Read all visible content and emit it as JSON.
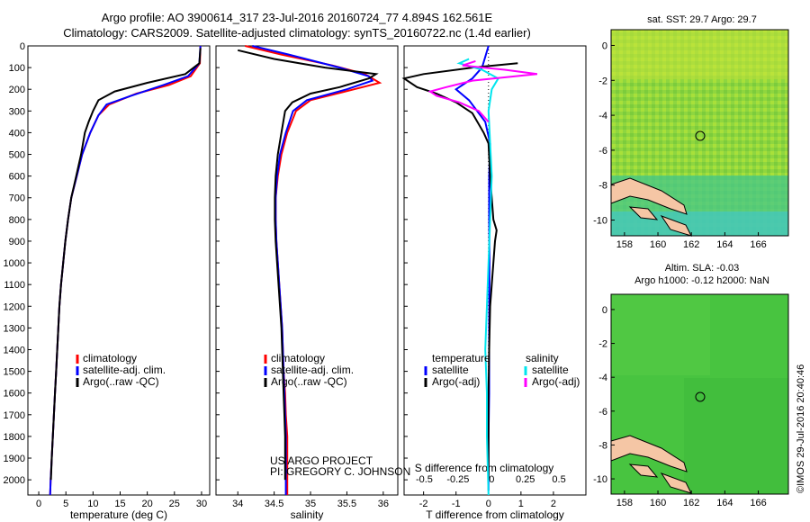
{
  "header": {
    "title_line1": "Argo profile: AO 3900614_317 23-Jul-2016 20160724_77 4.894S 162.561E",
    "title_line2": "Climatology: CARS2009. Satellite-adjusted climatology: synTS_20160722.nc (1.4d earlier)"
  },
  "colors": {
    "climatology": "#ff0000",
    "satellite": "#0000ff",
    "argo": "#000000",
    "sal_satellite": "#00e5ee",
    "sal_argo": "#ff00ff",
    "land": "#f5c6a5"
  },
  "maps": {
    "sst": {
      "title": "sat. SST: 29.7 Argo: 29.7",
      "xticks": [
        "158",
        "160",
        "162",
        "164",
        "166"
      ],
      "yticks": [
        "0",
        "-2",
        "-4",
        "-6",
        "-8",
        "-10"
      ],
      "float_lon": 162.561,
      "float_lat": -4.894
    },
    "sla": {
      "title_line1": "Altim. SLA: -0.03",
      "title_line2": "Argo h1000: -0.12 h2000: NaN",
      "xticks": [
        "158",
        "160",
        "162",
        "164",
        "166"
      ],
      "yticks": [
        "0",
        "-2",
        "-4",
        "-6",
        "-8",
        "-10"
      ],
      "float_lon": 162.561,
      "float_lat": -4.894
    }
  },
  "footer": {
    "project": "US ARGO PROJECT",
    "pi": "PI: GREGORY C. JOHNSON",
    "timestamp": "©IMOS 29-Jul-2016 20:40:46"
  },
  "chart_data": [
    {
      "type": "line",
      "name": "temperature",
      "xlabel": "temperature (deg C)",
      "ylabel": "",
      "xlim": [
        -2,
        31.5
      ],
      "ylim": [
        2070,
        0
      ],
      "xticks": [
        0,
        5,
        10,
        15,
        20,
        25,
        30
      ],
      "yticks": [
        0,
        100,
        200,
        300,
        400,
        500,
        600,
        700,
        800,
        900,
        1000,
        1100,
        1200,
        1300,
        1400,
        1500,
        1600,
        1700,
        1800,
        1900,
        2000
      ],
      "legend": [
        "climatology",
        "satellite-adj. clim.",
        "Argo(..raw -QC)"
      ],
      "legend_position": "bottom-center",
      "series": [
        {
          "name": "climatology",
          "color": "#ff0000",
          "points": [
            [
              29.8,
              0
            ],
            [
              29.7,
              80
            ],
            [
              28,
              140
            ],
            [
              24,
              180
            ],
            [
              18,
              220
            ],
            [
              13,
              270
            ],
            [
              11,
              320
            ],
            [
              9.5,
              400
            ],
            [
              8,
              500
            ],
            [
              7,
              600
            ],
            [
              6,
              700
            ],
            [
              5.4,
              800
            ],
            [
              4.9,
              900
            ],
            [
              4.5,
              1000
            ],
            [
              4.1,
              1100
            ],
            [
              3.8,
              1200
            ],
            [
              3.6,
              1300
            ],
            [
              3.4,
              1400
            ],
            [
              3.2,
              1500
            ],
            [
              3.0,
              1600
            ],
            [
              2.8,
              1700
            ],
            [
              2.6,
              1800
            ],
            [
              2.4,
              1900
            ],
            [
              2.2,
              2000
            ],
            [
              2.1,
              2070
            ]
          ]
        },
        {
          "name": "satellite-adj. clim.",
          "color": "#0000ff",
          "points": [
            [
              29.8,
              0
            ],
            [
              29.6,
              80
            ],
            [
              27.5,
              140
            ],
            [
              23,
              180
            ],
            [
              17,
              230
            ],
            [
              12.5,
              270
            ],
            [
              11,
              320
            ],
            [
              9.5,
              400
            ],
            [
              8,
              500
            ],
            [
              7,
              600
            ],
            [
              6,
              700
            ],
            [
              5.4,
              800
            ],
            [
              4.9,
              900
            ],
            [
              4.5,
              1000
            ],
            [
              4.1,
              1100
            ],
            [
              3.8,
              1200
            ],
            [
              3.6,
              1300
            ],
            [
              3.4,
              1400
            ],
            [
              3.2,
              1500
            ],
            [
              3.0,
              1600
            ],
            [
              2.8,
              1700
            ],
            [
              2.6,
              1800
            ],
            [
              2.4,
              1900
            ],
            [
              2.2,
              2000
            ],
            [
              2.1,
              2070
            ]
          ]
        },
        {
          "name": "Argo(..raw -QC)",
          "color": "#000000",
          "points": [
            [
              29.8,
              10
            ],
            [
              29.6,
              80
            ],
            [
              27,
              130
            ],
            [
              20,
              170
            ],
            [
              14,
              210
            ],
            [
              11,
              250
            ],
            [
              10,
              300
            ],
            [
              9.2,
              350
            ],
            [
              8.5,
              400
            ],
            [
              7.8,
              500
            ],
            [
              6.9,
              600
            ],
            [
              6,
              700
            ],
            [
              5.4,
              800
            ],
            [
              4.9,
              900
            ],
            [
              4.5,
              1000
            ],
            [
              4.1,
              1100
            ],
            [
              3.8,
              1200
            ],
            [
              3.6,
              1300
            ],
            [
              3.4,
              1400
            ],
            [
              3.2,
              1500
            ],
            [
              3.0,
              1600
            ],
            [
              2.8,
              1700
            ],
            [
              2.6,
              1800
            ],
            [
              2.4,
              1900
            ],
            [
              2.25,
              2000
            ]
          ]
        }
      ]
    },
    {
      "type": "line",
      "name": "salinity",
      "xlabel": "salinity",
      "ylabel": "",
      "xlim": [
        33.7,
        36.2
      ],
      "ylim": [
        2070,
        0
      ],
      "xticks": [
        34,
        34.5,
        35,
        35.5,
        36
      ],
      "legend": [
        "climatology",
        "satellite-adj. clim.",
        "Argo(..raw -QC)"
      ],
      "legend_position": "bottom-center",
      "series": [
        {
          "name": "climatology",
          "color": "#ff0000",
          "points": [
            [
              34.1,
              0
            ],
            [
              34.6,
              40
            ],
            [
              35.3,
              90
            ],
            [
              35.75,
              130
            ],
            [
              35.95,
              170
            ],
            [
              35.6,
              200
            ],
            [
              35.0,
              250
            ],
            [
              34.8,
              300
            ],
            [
              34.68,
              400
            ],
            [
              34.6,
              500
            ],
            [
              34.55,
              600
            ],
            [
              34.52,
              700
            ],
            [
              34.52,
              800
            ],
            [
              34.53,
              900
            ],
            [
              34.55,
              1000
            ],
            [
              34.57,
              1100
            ],
            [
              34.59,
              1200
            ],
            [
              34.61,
              1300
            ],
            [
              34.62,
              1400
            ],
            [
              34.63,
              1500
            ],
            [
              34.65,
              1600
            ],
            [
              34.66,
              1700
            ],
            [
              34.68,
              1800
            ],
            [
              34.68,
              1900
            ],
            [
              34.68,
              2000
            ],
            [
              34.68,
              2070
            ]
          ]
        },
        {
          "name": "satellite-adj. clim.",
          "color": "#0000ff",
          "points": [
            [
              34.2,
              0
            ],
            [
              34.7,
              40
            ],
            [
              35.4,
              100
            ],
            [
              35.8,
              140
            ],
            [
              35.85,
              160
            ],
            [
              35.5,
              200
            ],
            [
              34.95,
              250
            ],
            [
              34.76,
              300
            ],
            [
              34.66,
              400
            ],
            [
              34.58,
              500
            ],
            [
              34.54,
              600
            ],
            [
              34.52,
              700
            ],
            [
              34.52,
              800
            ],
            [
              34.53,
              900
            ],
            [
              34.55,
              1000
            ],
            [
              34.57,
              1100
            ],
            [
              34.59,
              1200
            ],
            [
              34.61,
              1300
            ],
            [
              34.62,
              1400
            ],
            [
              34.63,
              1500
            ],
            [
              34.64,
              1600
            ],
            [
              34.65,
              1700
            ],
            [
              34.66,
              1800
            ],
            [
              34.66,
              1900
            ],
            [
              34.66,
              2000
            ],
            [
              34.66,
              2070
            ]
          ]
        },
        {
          "name": "Argo(..raw -QC)",
          "color": "#000000",
          "points": [
            [
              34.0,
              20
            ],
            [
              34.5,
              60
            ],
            [
              35.2,
              100
            ],
            [
              35.9,
              130
            ],
            [
              35.8,
              150
            ],
            [
              35.4,
              190
            ],
            [
              35.0,
              220
            ],
            [
              34.75,
              260
            ],
            [
              34.65,
              300
            ],
            [
              34.6,
              400
            ],
            [
              34.55,
              500
            ],
            [
              34.52,
              600
            ],
            [
              34.51,
              700
            ],
            [
              34.51,
              800
            ],
            [
              34.52,
              900
            ],
            [
              34.54,
              1000
            ],
            [
              34.56,
              1100
            ],
            [
              34.58,
              1200
            ],
            [
              34.6,
              1300
            ],
            [
              34.61,
              1400
            ],
            [
              34.62,
              1500
            ],
            [
              34.63,
              1600
            ],
            [
              34.64,
              1700
            ],
            [
              34.65,
              1800
            ],
            [
              34.65,
              1900
            ],
            [
              34.65,
              2000
            ]
          ]
        }
      ]
    },
    {
      "type": "line",
      "name": "difference",
      "xlabel": "T difference from climatology",
      "xlabel_top": "S difference from climatology",
      "ylabel": "",
      "xlim": [
        -2.6,
        3.0
      ],
      "ylim": [
        2070,
        0
      ],
      "xticks": [
        -2,
        -1,
        0,
        1,
        2
      ],
      "xticks_top": [
        "-0.5",
        "-0.25",
        "0",
        "0.25",
        "0.5"
      ],
      "xticks_top_values": [
        -0.5,
        -0.25,
        0,
        0.25,
        0.5
      ],
      "legend": [
        "temperature",
        "satellite",
        "Argo(-adj)",
        "salinity",
        "satellite",
        "Argo(-adj)"
      ],
      "legend_position": "bottom-center",
      "series": [
        {
          "name": "temperature satellite",
          "color": "#0000ff",
          "points": [
            [
              0,
              0
            ],
            [
              -0.2,
              100
            ],
            [
              -0.5,
              150
            ],
            [
              -1.0,
              200
            ],
            [
              -0.6,
              250
            ],
            [
              -0.1,
              350
            ],
            [
              0.05,
              450
            ],
            [
              0.02,
              600
            ],
            [
              0.02,
              800
            ],
            [
              0.03,
              1000
            ],
            [
              0.02,
              1300
            ],
            [
              0.02,
              1600
            ],
            [
              0.0,
              1800
            ],
            [
              0.0,
              2050
            ]
          ]
        },
        {
          "name": "temperature Argo(-adj)",
          "color": "#000000",
          "points": [
            [
              0.9,
              80
            ],
            [
              -0.5,
              100
            ],
            [
              -2.0,
              130
            ],
            [
              -2.6,
              150
            ],
            [
              -2.2,
              190
            ],
            [
              -1.6,
              220
            ],
            [
              -1.0,
              260
            ],
            [
              -0.5,
              310
            ],
            [
              -0.15,
              400
            ],
            [
              0.0,
              450
            ],
            [
              0.05,
              600
            ],
            [
              0.15,
              800
            ],
            [
              0.25,
              850
            ],
            [
              0.2,
              900
            ],
            [
              0.15,
              1000
            ],
            [
              0.05,
              1200
            ],
            [
              0.02,
              1400
            ],
            [
              0.0,
              1600
            ],
            [
              0.0,
              1800
            ],
            [
              0.0,
              2000
            ]
          ]
        },
        {
          "name": "salinity satellite",
          "color": "#00e5ee",
          "points": [
            [
              -0.6,
              60
            ],
            [
              -0.9,
              80
            ],
            [
              -0.2,
              110
            ],
            [
              0.3,
              150
            ],
            [
              0.1,
              200
            ],
            [
              0.0,
              300
            ],
            [
              0.05,
              450
            ],
            [
              0.1,
              600
            ],
            [
              0.05,
              800
            ],
            [
              0.0,
              1000
            ],
            [
              -0.05,
              1200
            ],
            [
              -0.1,
              1400
            ],
            [
              -0.05,
              1600
            ],
            [
              -0.05,
              1800
            ],
            [
              0.0,
              2070
            ]
          ]
        },
        {
          "name": "salinity Argo(-adj)",
          "color": "#ff00ff",
          "points": [
            [
              -0.4,
              70
            ],
            [
              -0.8,
              90
            ],
            [
              0.5,
              110
            ],
            [
              1.5,
              130
            ],
            [
              -0.5,
              160
            ],
            [
              -1.3,
              190
            ],
            [
              -1.8,
              210
            ],
            [
              -1.6,
              230
            ],
            [
              -0.9,
              260
            ],
            [
              -0.3,
              300
            ],
            [
              0.0,
              350
            ]
          ]
        }
      ]
    }
  ]
}
